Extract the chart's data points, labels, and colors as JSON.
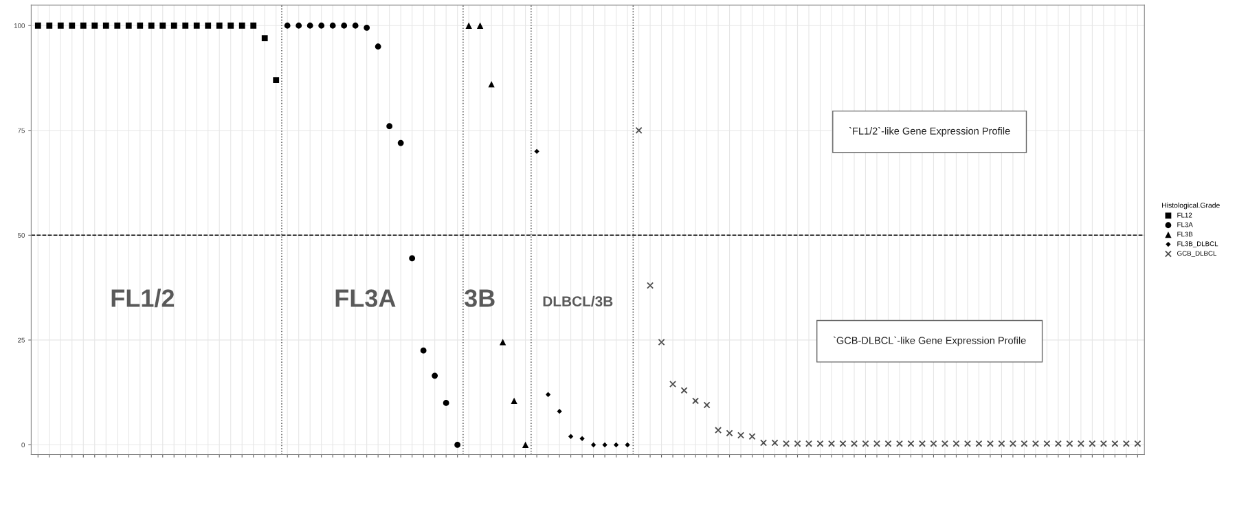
{
  "chart_data": {
    "type": "scatter",
    "categories": [
      null,
      null,
      null,
      null,
      null,
      null,
      null,
      null,
      null,
      null,
      null,
      null,
      null,
      null,
      null,
      null,
      null,
      null,
      null,
      null,
      null,
      null,
      null,
      null,
      null,
      null,
      null,
      null,
      null,
      null,
      null,
      null,
      null,
      null,
      null,
      null,
      null,
      null,
      null,
      null,
      null,
      null,
      null,
      null,
      null,
      null,
      null,
      null,
      null,
      null,
      null,
      null,
      null,
      null,
      null,
      null,
      null,
      null,
      null,
      null,
      null,
      null,
      null,
      null,
      null,
      null,
      null,
      null,
      null,
      null,
      null,
      null,
      null,
      null,
      null,
      null,
      null,
      null,
      null,
      null,
      null,
      null,
      null,
      null,
      null,
      null,
      null,
      null,
      null,
      null,
      null,
      null,
      null,
      null,
      null,
      null,
      null,
      null
    ],
    "ylim": [
      -2.3,
      104.9
    ],
    "yticks": [
      0,
      25,
      50,
      75,
      100
    ],
    "grid": true,
    "legend": "right",
    "legend_title": "Histological.Grade",
    "series": [
      {
        "name": "FL12",
        "color": "#000000",
        "marker": "square",
        "values": [
          100,
          100,
          100,
          100,
          100,
          100,
          100,
          100,
          100,
          100,
          100,
          100,
          100,
          100,
          100,
          100,
          100,
          100,
          100,
          100,
          97,
          87,
          null,
          null,
          null,
          null,
          null,
          null,
          null,
          null,
          null,
          null,
          null,
          null,
          null,
          null,
          null,
          null,
          null,
          null,
          null,
          null,
          null,
          null,
          null,
          null,
          null,
          null,
          null,
          null,
          null,
          null,
          null,
          null,
          null,
          null,
          null,
          null,
          null,
          null,
          null,
          null,
          null,
          null,
          null,
          null,
          null,
          null,
          null,
          null,
          null,
          null,
          null,
          null,
          null,
          null,
          null,
          null,
          null,
          null,
          null,
          null,
          null,
          null,
          null,
          null,
          null,
          null,
          null,
          null,
          null,
          null,
          null,
          null,
          null,
          null,
          null,
          null
        ]
      },
      {
        "name": "FL3A",
        "color": "#000000",
        "marker": "circle",
        "values": [
          null,
          null,
          null,
          null,
          null,
          null,
          null,
          null,
          null,
          null,
          null,
          null,
          null,
          null,
          null,
          null,
          null,
          null,
          null,
          null,
          null,
          null,
          100,
          100,
          100,
          100,
          100,
          100,
          100,
          99.5,
          95,
          76,
          72,
          44.5,
          22.5,
          16.5,
          10,
          0,
          null,
          null,
          null,
          null,
          null,
          null,
          null,
          null,
          null,
          null,
          null,
          null,
          null,
          null,
          null,
          null,
          null,
          null,
          null,
          null,
          null,
          null,
          null,
          null,
          null,
          null,
          null,
          null,
          null,
          null,
          null,
          null,
          null,
          null,
          null,
          null,
          null,
          null,
          null,
          null,
          null,
          null,
          null,
          null,
          null,
          null,
          null,
          null,
          null,
          null,
          null,
          null,
          null,
          null,
          null,
          null,
          null,
          null,
          null,
          null
        ]
      },
      {
        "name": "FL3B",
        "color": "#000000",
        "marker": "triangle",
        "values": [
          null,
          null,
          null,
          null,
          null,
          null,
          null,
          null,
          null,
          null,
          null,
          null,
          null,
          null,
          null,
          null,
          null,
          null,
          null,
          null,
          null,
          null,
          null,
          null,
          null,
          null,
          null,
          null,
          null,
          null,
          null,
          null,
          null,
          null,
          null,
          null,
          null,
          null,
          100,
          100,
          86,
          24.5,
          10.5,
          0,
          null,
          null,
          null,
          null,
          null,
          null,
          null,
          null,
          null,
          null,
          null,
          null,
          null,
          null,
          null,
          null,
          null,
          null,
          null,
          null,
          null,
          null,
          null,
          null,
          null,
          null,
          null,
          null,
          null,
          null,
          null,
          null,
          null,
          null,
          null,
          null,
          null,
          null,
          null,
          null,
          null,
          null,
          null,
          null,
          null,
          null,
          null,
          null,
          null,
          null,
          null,
          null,
          null,
          null
        ]
      },
      {
        "name": "FL3B_DLBCL",
        "color": "#000000",
        "marker": "diamond",
        "values": [
          null,
          null,
          null,
          null,
          null,
          null,
          null,
          null,
          null,
          null,
          null,
          null,
          null,
          null,
          null,
          null,
          null,
          null,
          null,
          null,
          null,
          null,
          null,
          null,
          null,
          null,
          null,
          null,
          null,
          null,
          null,
          null,
          null,
          null,
          null,
          null,
          null,
          null,
          null,
          null,
          null,
          null,
          null,
          null,
          70,
          12,
          8,
          2,
          1.5,
          0,
          0,
          0,
          0,
          null,
          null,
          null,
          null,
          null,
          null,
          null,
          null,
          null,
          null,
          null,
          null,
          null,
          null,
          null,
          null,
          null,
          null,
          null,
          null,
          null,
          null,
          null,
          null,
          null,
          null,
          null,
          null,
          null,
          null,
          null,
          null,
          null,
          null,
          null,
          null,
          null,
          null,
          null,
          null,
          null,
          null,
          null,
          null,
          null
        ]
      },
      {
        "name": "GCB_DLBCL",
        "color": "#4d4d4d",
        "marker": "cross",
        "values": [
          null,
          null,
          null,
          null,
          null,
          null,
          null,
          null,
          null,
          null,
          null,
          null,
          null,
          null,
          null,
          null,
          null,
          null,
          null,
          null,
          null,
          null,
          null,
          null,
          null,
          null,
          null,
          null,
          null,
          null,
          null,
          null,
          null,
          null,
          null,
          null,
          null,
          null,
          null,
          null,
          null,
          null,
          null,
          null,
          null,
          null,
          null,
          null,
          null,
          null,
          null,
          null,
          null,
          75,
          38,
          24.5,
          14.5,
          13,
          10.5,
          9.5,
          3.5,
          2.8,
          2.3,
          2,
          0.5,
          0.5,
          0.3,
          0.3,
          0.3,
          0.3,
          0.3,
          0.3,
          0.3,
          0.3,
          0.3,
          0.3,
          0.3,
          0.3,
          0.3,
          0.3,
          0.3,
          0.3,
          0.3,
          0.3,
          0.3,
          0.3,
          0.3,
          0.3,
          0.3,
          0.3,
          0.3,
          0.3,
          0.3,
          0.3,
          0.3,
          0.3,
          0.3,
          0.3
        ]
      }
    ],
    "ref_lines": [
      {
        "axis": "y",
        "value": 50,
        "label": null,
        "color": "#000000",
        "line_style": "dashed"
      }
    ],
    "annotations": [
      "`FL1/2`-like Gene Expression Profile",
      "`GCB-DLBCL`-like Gene Expression Profile",
      "FL1/2",
      "FL3A",
      "3B",
      "DLBCL/3B"
    ]
  }
}
